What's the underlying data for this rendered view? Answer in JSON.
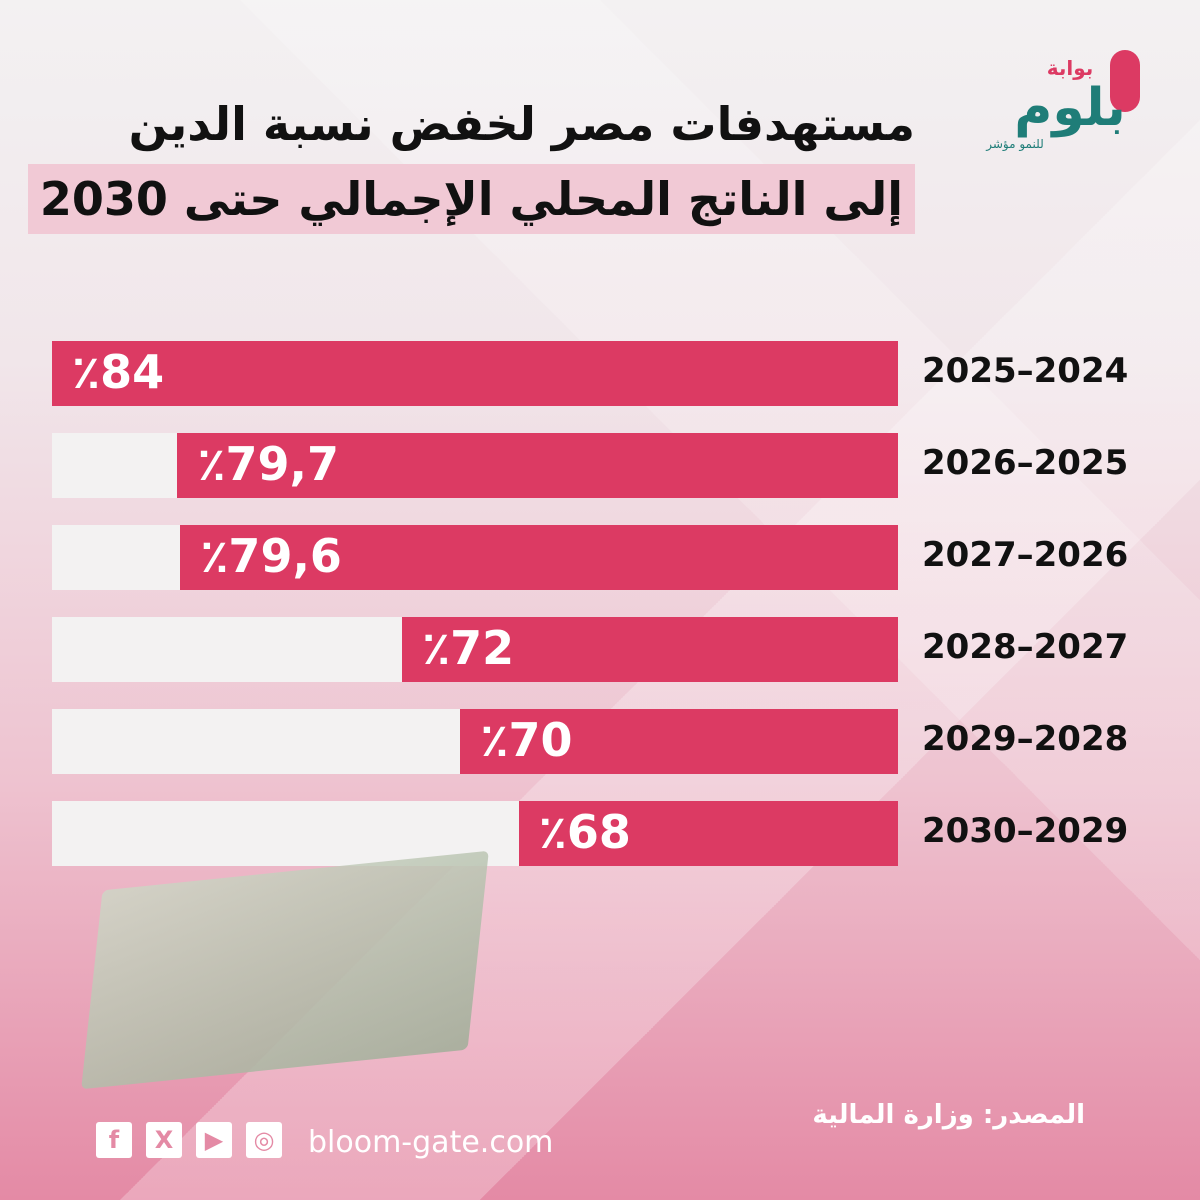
{
  "title": {
    "line1": "مستهدفات مصر لخفض نسبة الدين",
    "line2": "إلى الناتج المحلي الإجمالي حتى 2030"
  },
  "logo": {
    "top": "بوابة",
    "main": "بلوم",
    "tagline": "للنمو مؤشر"
  },
  "colors": {
    "bar": "#dc3a63",
    "track": "#f3f2f2",
    "logo_teal": "#1f7d78",
    "logo_pink": "#dc3a63"
  },
  "chart_data": {
    "type": "bar",
    "orientation": "horizontal",
    "categories": [
      "2025–2024",
      "2026–2025",
      "2027–2026",
      "2028–2027",
      "2029–2028",
      "2030–2029"
    ],
    "values": [
      84,
      79.7,
      79.6,
      72,
      70,
      68
    ],
    "value_labels": [
      "٪84",
      "٪79,7",
      "٪79,6",
      "٪72",
      "٪70",
      "٪68"
    ],
    "unit": "%"
  },
  "footer": {
    "source": "المصدر: وزارة المالية",
    "website": "bloom-gate.com",
    "social": [
      "facebook-icon",
      "x-icon",
      "youtube-icon",
      "instagram-icon"
    ]
  }
}
